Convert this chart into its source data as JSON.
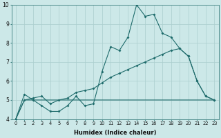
{
  "xlabel": "Humidex (Indice chaleur)",
  "xlim_min": -0.5,
  "xlim_max": 23.5,
  "ylim_min": 4,
  "ylim_max": 10,
  "yticks": [
    4,
    5,
    6,
    7,
    8,
    9,
    10
  ],
  "xticks": [
    0,
    1,
    2,
    3,
    4,
    5,
    6,
    7,
    8,
    9,
    10,
    11,
    12,
    13,
    14,
    15,
    16,
    17,
    18,
    19,
    20,
    21,
    22,
    23
  ],
  "bg_color": "#cce8e8",
  "line_color": "#1e6b6b",
  "grid_color": "#aacece",
  "series1_x": [
    0,
    1,
    2,
    3,
    4,
    5,
    6,
    7,
    8,
    9,
    10,
    11,
    12,
    13,
    14,
    15,
    16,
    17,
    18,
    19,
    20,
    21,
    22,
    23
  ],
  "series1_y": [
    4.0,
    5.3,
    5.0,
    4.7,
    4.4,
    4.4,
    4.7,
    5.2,
    4.7,
    4.8,
    6.5,
    7.8,
    7.6,
    8.3,
    10.0,
    9.4,
    9.5,
    8.5,
    8.3,
    7.7,
    7.3,
    6.0,
    5.2,
    5.0
  ],
  "series2_x": [
    0,
    1,
    2,
    3,
    4,
    5,
    6,
    7,
    8,
    9,
    10,
    11,
    12,
    13,
    14,
    15,
    16,
    17,
    18,
    19,
    20,
    21,
    22,
    23
  ],
  "series2_y": [
    4.0,
    5.0,
    5.1,
    5.2,
    4.8,
    5.0,
    5.1,
    5.4,
    5.5,
    5.6,
    5.9,
    6.2,
    6.4,
    6.6,
    6.8,
    7.0,
    7.2,
    7.4,
    7.6,
    7.7,
    7.3,
    6.0,
    5.2,
    5.0
  ],
  "series3_x": [
    0,
    1,
    23
  ],
  "series3_y": [
    4.0,
    5.0,
    5.0
  ]
}
